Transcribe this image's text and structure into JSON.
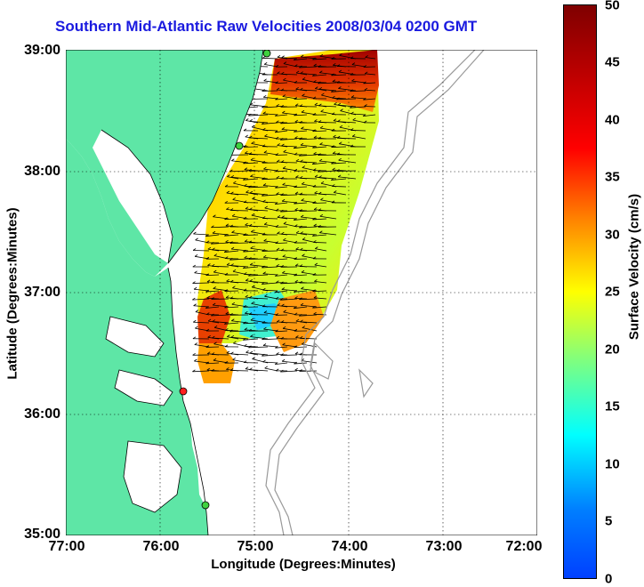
{
  "title": "Southern Mid-Atlantic Raw Velocities 2008/03/04 0200 GMT",
  "x_axis": {
    "label": "Longitude (Degrees:Minutes)",
    "ticks": [
      "77:00",
      "76:00",
      "75:00",
      "74:00",
      "73:00",
      "72:00"
    ]
  },
  "y_axis": {
    "label": "Latitude (Degrees:Minutes)",
    "ticks": [
      "39:00",
      "38:00",
      "37:00",
      "36:00",
      "35:00"
    ]
  },
  "colorbar": {
    "label": "Surface Velocity (cm/s)",
    "ticks": [
      "50",
      "45",
      "40",
      "35",
      "30",
      "25",
      "20",
      "15",
      "10",
      "5",
      "0"
    ]
  },
  "colors": {
    "land": "#5ee6a6",
    "title": "#1a1adf",
    "site_active": "#3fd13f",
    "site_inactive": "#ff2020"
  }
}
